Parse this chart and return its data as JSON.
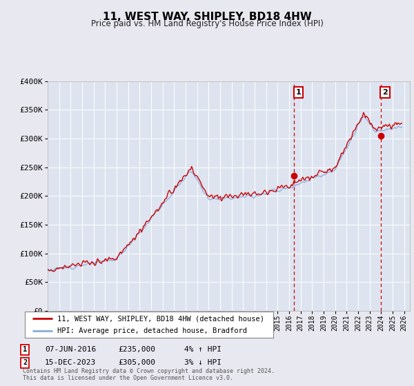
{
  "title": "11, WEST WAY, SHIPLEY, BD18 4HW",
  "subtitle": "Price paid vs. HM Land Registry's House Price Index (HPI)",
  "legend_line1": "11, WEST WAY, SHIPLEY, BD18 4HW (detached house)",
  "legend_line2": "HPI: Average price, detached house, Bradford",
  "sale1_date": "07-JUN-2016",
  "sale1_price": "£235,000",
  "sale1_hpi": "4% ↑ HPI",
  "sale1_year": 2016.44,
  "sale1_value": 235000,
  "sale2_date": "15-DEC-2023",
  "sale2_price": "£305,000",
  "sale2_hpi": "3% ↓ HPI",
  "sale2_year": 2023.96,
  "sale2_value": 305000,
  "footer": "Contains HM Land Registry data © Crown copyright and database right 2024.\nThis data is licensed under the Open Government Licence v3.0.",
  "hpi_color": "#88aadd",
  "price_color": "#cc0000",
  "vline_color": "#cc0000",
  "background_color": "#e8e8f0",
  "plot_bg_color": "#dde4f0",
  "ylim": [
    0,
    400000
  ],
  "xlim_start": 1995.0,
  "xlim_end": 2026.5
}
